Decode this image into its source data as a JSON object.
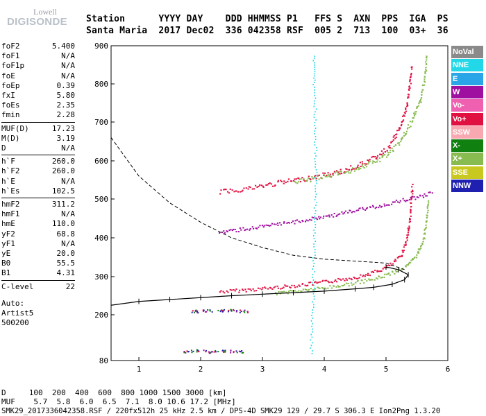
{
  "logo": {
    "line1": "Lowell",
    "line2": "DIGISONDE"
  },
  "header": {
    "line1": "Station      YYYY DAY    DDD HHMMSS P1   FFS S  AXN  PPS  IGA  PS",
    "line2": "Santa Maria  2017 Dec02  336 042358 RSF  005 2  713  100  03+  36"
  },
  "params": [
    {
      "key": "foF2",
      "value": "5.400"
    },
    {
      "key": "foF1",
      "value": "N/A"
    },
    {
      "key": "foF1p",
      "value": "N/A"
    },
    {
      "key": "foE",
      "value": "N/A"
    },
    {
      "key": "foEp",
      "value": "0.39"
    },
    {
      "key": "fxI",
      "value": "5.80"
    },
    {
      "key": "foEs",
      "value": "2.35"
    },
    {
      "key": "fmin",
      "value": "2.28"
    },
    {
      "key": "MUF(D)",
      "value": "17.23"
    },
    {
      "key": "M(D)",
      "value": "3.19"
    },
    {
      "key": "D",
      "value": "N/A"
    },
    {
      "key": "h`F",
      "value": "260.0"
    },
    {
      "key": "h`F2",
      "value": "260.0"
    },
    {
      "key": "h`E",
      "value": "N/A"
    },
    {
      "key": "h`Es",
      "value": "102.5"
    },
    {
      "key": "hmF2",
      "value": "311.2"
    },
    {
      "key": "hmF1",
      "value": "N/A"
    },
    {
      "key": "hmE",
      "value": "110.0"
    },
    {
      "key": "yF2",
      "value": "68.8"
    },
    {
      "key": "yF1",
      "value": "N/A"
    },
    {
      "key": "yE",
      "value": "20.0"
    },
    {
      "key": "B0",
      "value": "55.5"
    },
    {
      "key": "B1",
      "value": "4.31"
    },
    {
      "key": "C-level",
      "value": "22"
    }
  ],
  "autoscale": {
    "line1": "Auto:",
    "line2": "Artist5",
    "line3": "500200"
  },
  "legend": [
    {
      "label": "NoVal",
      "color": "#808080"
    },
    {
      "label": "NNE",
      "color": "#22d8e8"
    },
    {
      "label": "E",
      "color": "#2aa6e8"
    },
    {
      "label": "W",
      "color": "#a010a0"
    },
    {
      "label": "Vo-",
      "color": "#f060b0"
    },
    {
      "label": "Vo+",
      "color": "#e01040"
    },
    {
      "label": "SSW",
      "color": "#f8a8b0"
    },
    {
      "label": "X-",
      "color": "#108010"
    },
    {
      "label": "X+",
      "color": "#88bb50"
    },
    {
      "label": "SSE",
      "color": "#c8c820"
    },
    {
      "label": "NNW",
      "color": "#2020b0"
    }
  ],
  "bottom": {
    "line1": "D     100  200  400  600  800 1000 1500 3000 [km]",
    "line2": "MUF    5.7  5.8  6.0  6.5  7.1  8.0 10.6 17.2 [MHz]",
    "line3": "SMK29_2017336042358.RSF / 220fx512h 25 kHz 2.5 km / DPS-4D SMK29 129 / 29.7 S 306.3 E Ion2Png 1.3.20"
  },
  "chart_data": {
    "type": "scatter",
    "xlim": [
      0.55,
      6.0
    ],
    "ylim": [
      80,
      900
    ],
    "x_ticks": [
      "1",
      "2",
      "3",
      "4",
      "5",
      "6"
    ],
    "y_ticks": [
      "80",
      "200",
      "300",
      "400",
      "500",
      "600",
      "700",
      "800",
      "900"
    ],
    "grid": false,
    "series": [
      {
        "name": "Vo+",
        "color": "#e01040",
        "points": [
          [
            2.3,
            262
          ],
          [
            2.6,
            265
          ],
          [
            3.0,
            270
          ],
          [
            3.4,
            276
          ],
          [
            3.8,
            283
          ],
          [
            4.2,
            292
          ],
          [
            4.6,
            303
          ],
          [
            4.9,
            318
          ],
          [
            5.1,
            335
          ],
          [
            5.25,
            360
          ],
          [
            5.33,
            400
          ],
          [
            5.38,
            450
          ],
          [
            5.4,
            500
          ],
          [
            5.42,
            540
          ]
        ]
      },
      {
        "name": "X+",
        "color": "#88bb50",
        "points": [
          [
            3.2,
            258
          ],
          [
            3.6,
            265
          ],
          [
            4.0,
            272
          ],
          [
            4.4,
            282
          ],
          [
            4.8,
            295
          ],
          [
            5.1,
            312
          ],
          [
            5.35,
            330
          ],
          [
            5.5,
            360
          ],
          [
            5.6,
            400
          ],
          [
            5.65,
            450
          ],
          [
            5.68,
            500
          ]
        ]
      },
      {
        "name": "Vo+ 2F",
        "color": "#e01040",
        "points": [
          [
            2.3,
            520
          ],
          [
            2.8,
            530
          ],
          [
            3.3,
            545
          ],
          [
            3.8,
            558
          ],
          [
            4.3,
            575
          ],
          [
            4.7,
            600
          ],
          [
            5.0,
            630
          ],
          [
            5.2,
            680
          ],
          [
            5.32,
            740
          ],
          [
            5.38,
            800
          ],
          [
            5.4,
            850
          ]
        ]
      },
      {
        "name": "X+ 2F",
        "color": "#88bb50",
        "points": [
          [
            3.5,
            545
          ],
          [
            4.0,
            560
          ],
          [
            4.5,
            580
          ],
          [
            4.9,
            605
          ],
          [
            5.2,
            645
          ],
          [
            5.4,
            700
          ],
          [
            5.55,
            760
          ],
          [
            5.62,
            820
          ],
          [
            5.65,
            880
          ]
        ]
      },
      {
        "name": "W",
        "color": "#a010a0",
        "points": [
          [
            2.3,
            415
          ],
          [
            2.6,
            422
          ],
          [
            3.0,
            430
          ],
          [
            3.4,
            440
          ],
          [
            3.8,
            450
          ],
          [
            4.2,
            462
          ],
          [
            4.6,
            475
          ],
          [
            5.0,
            488
          ],
          [
            5.3,
            500
          ],
          [
            5.6,
            510
          ],
          [
            5.75,
            520
          ]
        ]
      },
      {
        "name": "NNE",
        "color": "#22d8e8",
        "points": [
          [
            3.78,
            100
          ],
          [
            3.8,
            200
          ],
          [
            3.82,
            300
          ],
          [
            3.84,
            400
          ],
          [
            3.85,
            500
          ],
          [
            3.86,
            600
          ],
          [
            3.85,
            700
          ],
          [
            3.83,
            800
          ],
          [
            3.82,
            880
          ]
        ]
      },
      {
        "name": "Es",
        "color": "#108010",
        "points": [
          [
            1.8,
            105
          ],
          [
            2.0,
            106
          ],
          [
            2.2,
            104
          ],
          [
            2.4,
            105
          ],
          [
            2.6,
            104
          ],
          [
            1.9,
            210
          ],
          [
            2.1,
            212
          ],
          [
            2.3,
            213
          ],
          [
            2.5,
            212
          ],
          [
            2.7,
            211
          ]
        ]
      }
    ],
    "profile": {
      "x": [
        0.55,
        1.0,
        1.5,
        2.0,
        2.5,
        3.0,
        3.5,
        4.0,
        4.5,
        4.8,
        5.1,
        5.3,
        5.36,
        5.2,
        5.0
      ],
      "y": [
        225,
        235,
        240,
        245,
        250,
        254,
        258,
        262,
        268,
        272,
        280,
        292,
        305,
        318,
        325
      ]
    },
    "profile_dashed": {
      "x": [
        0.55,
        1.0,
        1.5,
        2.0,
        2.5,
        3.0,
        3.5,
        4.0,
        4.5,
        5.0,
        5.3
      ],
      "y": [
        660,
        560,
        490,
        440,
        400,
        375,
        355,
        345,
        340,
        335,
        318
      ]
    }
  }
}
